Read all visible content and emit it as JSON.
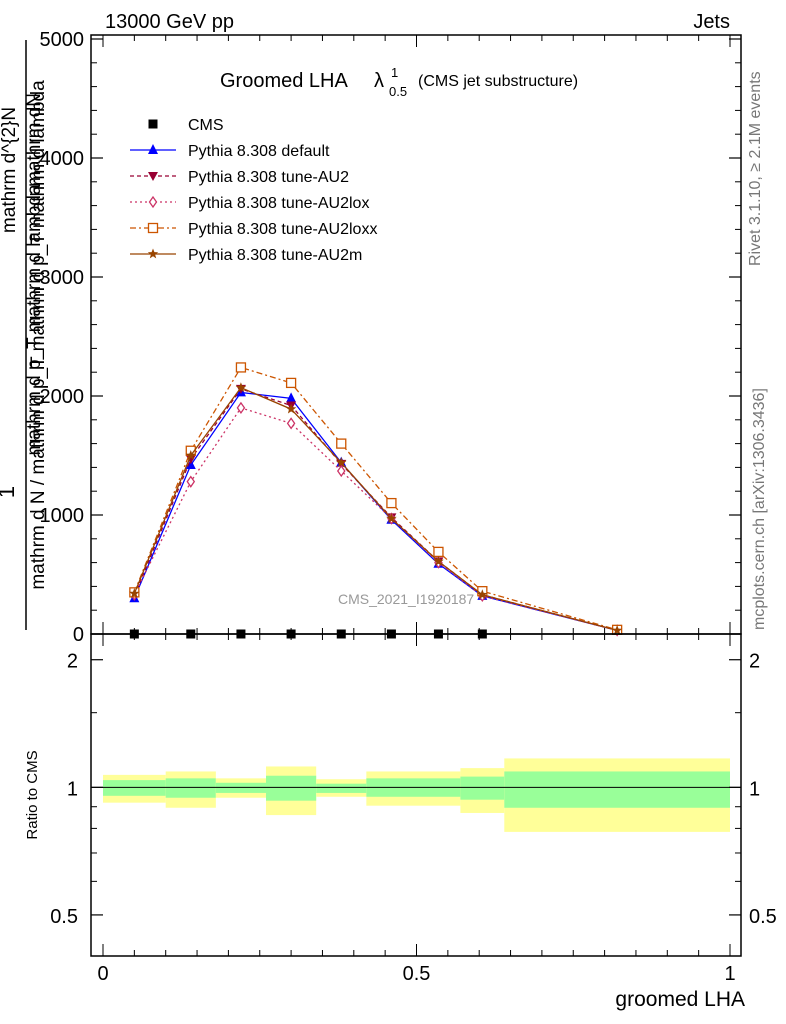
{
  "header": {
    "left": "13000 GeV pp",
    "right": "Jets"
  },
  "title": {
    "main": "Groomed LHA",
    "lambda": "λ",
    "sup": "1",
    "sub": "0.5",
    "paren": "(CMS jet substructure)"
  },
  "side_labels": {
    "rivet": "Rivet 3.1.10, ≥ 2.1M events",
    "mcplots": "mcplots.cern.ch [arXiv:1306.3436]"
  },
  "watermark": "CMS_2021_I1920187",
  "colors": {
    "cms": "#000000",
    "default": "#0000ff",
    "au2": "#990033",
    "au2lox": "#cc3366",
    "au2loxx": "#cc5500",
    "au2m": "#994400",
    "band_inner": "#99ff99",
    "band_outer": "#ffff99"
  },
  "chart_data": [
    {
      "type": "line",
      "xlim": [
        0,
        1
      ],
      "ylim": [
        0,
        5000
      ],
      "xlabel": "",
      "ylabel_top": "1",
      "ylabel_num": "mathrm d^{2}N",
      "ylabel_den": "mathrm d N / mathrm d p_T mathrm d p_T mathrm d lambda",
      "ylabel_overlay_num": "mathrm dN",
      "ylabel_overlay_den": "mathrm d p_T mathrm d lambda",
      "yticks": [
        "0",
        "1000",
        "2000",
        "3000",
        "4000",
        "5000"
      ],
      "ytick_values": [
        0,
        1000,
        2000,
        3000,
        4000,
        5000
      ],
      "legend_position": "top-left",
      "x": [
        0.05,
        0.14,
        0.22,
        0.3,
        0.38,
        0.46,
        0.535,
        0.605,
        0.82
      ],
      "series": [
        {
          "name": "CMS",
          "key": "cms",
          "marker": "square",
          "values": [
            0,
            0,
            0,
            0,
            0,
            0,
            0,
            0,
            null
          ]
        },
        {
          "name": "Pythia 8.308 default",
          "key": "default",
          "marker": "triangle-up",
          "dash": "solid",
          "values": [
            300,
            1420,
            2030,
            1980,
            1440,
            960,
            590,
            320,
            30
          ]
        },
        {
          "name": "Pythia 8.308 tune-AU2",
          "key": "au2",
          "marker": "triangle-down",
          "dash": "dashed",
          "values": [
            320,
            1470,
            2060,
            1920,
            1430,
            980,
            610,
            330,
            30
          ]
        },
        {
          "name": "Pythia 8.308 tune-AU2lox",
          "key": "au2lox",
          "marker": "diamond-open",
          "dash": "dotted",
          "values": [
            330,
            1280,
            1900,
            1770,
            1370,
            970,
            600,
            320,
            30
          ]
        },
        {
          "name": "Pythia 8.308 tune-AU2loxx",
          "key": "au2loxx",
          "marker": "square-open",
          "dash": "dashdot",
          "values": [
            350,
            1540,
            2240,
            2110,
            1600,
            1100,
            690,
            360,
            35
          ]
        },
        {
          "name": "Pythia 8.308 tune-AU2m",
          "key": "au2m",
          "marker": "star",
          "dash": "solid",
          "values": [
            340,
            1500,
            2070,
            1890,
            1440,
            970,
            610,
            330,
            30
          ]
        }
      ]
    },
    {
      "type": "area",
      "xlim": [
        0,
        1
      ],
      "ylim": [
        0.4,
        2.3
      ],
      "xlabel": "groomed LHA",
      "ylabel": "Ratio to CMS",
      "yticks": [
        "0.5",
        "1",
        "2"
      ],
      "ytick_values": [
        0.5,
        1,
        2
      ],
      "xticks": [
        "0",
        "0.5",
        "1"
      ],
      "xtick_values": [
        0,
        0.5,
        1
      ],
      "bins": [
        {
          "x0": 0.0,
          "x1": 0.1,
          "inner": [
            0.955,
            1.04
          ],
          "outer": [
            0.92,
            1.07
          ]
        },
        {
          "x0": 0.1,
          "x1": 0.18,
          "inner": [
            0.945,
            1.05
          ],
          "outer": [
            0.895,
            1.09
          ]
        },
        {
          "x0": 0.18,
          "x1": 0.26,
          "inner": [
            0.97,
            1.025
          ],
          "outer": [
            0.945,
            1.05
          ]
        },
        {
          "x0": 0.26,
          "x1": 0.34,
          "inner": [
            0.93,
            1.065
          ],
          "outer": [
            0.86,
            1.12
          ]
        },
        {
          "x0": 0.34,
          "x1": 0.42,
          "inner": [
            0.97,
            1.02
          ],
          "outer": [
            0.95,
            1.045
          ]
        },
        {
          "x0": 0.42,
          "x1": 0.5,
          "inner": [
            0.95,
            1.05
          ],
          "outer": [
            0.905,
            1.09
          ]
        },
        {
          "x0": 0.5,
          "x1": 0.57,
          "inner": [
            0.95,
            1.05
          ],
          "outer": [
            0.905,
            1.09
          ]
        },
        {
          "x0": 0.57,
          "x1": 0.64,
          "inner": [
            0.935,
            1.06
          ],
          "outer": [
            0.87,
            1.11
          ]
        },
        {
          "x0": 0.64,
          "x1": 1.0,
          "inner": [
            0.895,
            1.09
          ],
          "outer": [
            0.785,
            1.17
          ]
        }
      ]
    }
  ]
}
